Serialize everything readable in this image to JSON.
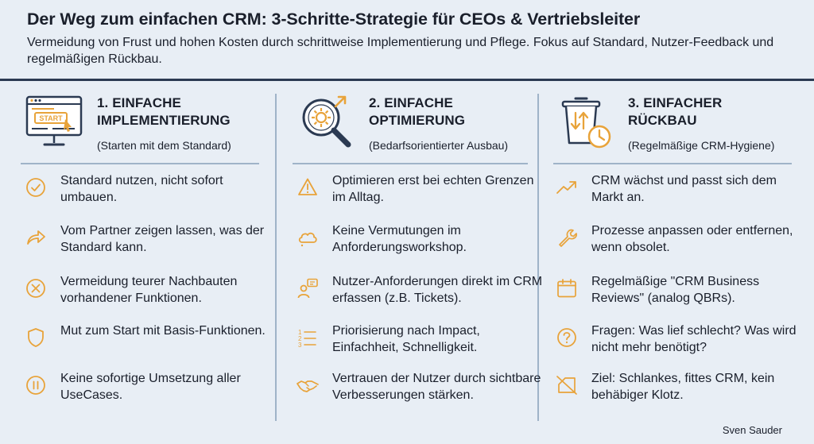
{
  "header": {
    "title": "Der Weg zum einfachen CRM: 3-Schritte-Strategie für CEOs & Vertriebsleiter",
    "subtitle": "Vermeidung von Frust und hohen Kosten durch schrittweise Implementierung und Pflege. Fokus auf Standard, Nutzer-Feedback und regelmäßigen Rückbau."
  },
  "colors": {
    "accent": "#e8a33a",
    "dark": "#2b3a52",
    "background": "#e8eef5"
  },
  "columns": [
    {
      "title_line1": "1. EINFACHE",
      "title_line2": "IMPLEMENTIERUNG",
      "subtitle": "(Starten mit dem Standard)",
      "icon": "monitor-start-icon",
      "start_label": "START",
      "items": [
        {
          "icon": "check-circle-icon",
          "text": "Standard nutzen, nicht sofort umbauen."
        },
        {
          "icon": "share-arrow-icon",
          "text": "Vom Partner zeigen lassen, was der Standard kann."
        },
        {
          "icon": "x-circle-icon",
          "text": "Vermeidung teurer Nachbauten vorhandener Funktionen."
        },
        {
          "icon": "shield-icon",
          "text": "Mut zum Start mit Basis-Funktionen."
        },
        {
          "icon": "pause-circle-icon",
          "text": "Keine sofortige Umsetzung aller UseCases."
        }
      ]
    },
    {
      "title_line1": "2. EINFACHE",
      "title_line2": "OPTIMIERUNG",
      "subtitle": "(Bedarfsorientierter Ausbau)",
      "icon": "magnifier-gear-icon",
      "items": [
        {
          "icon": "warning-triangle-icon",
          "text": "Optimieren erst bei echten Grenzen im Alltag."
        },
        {
          "icon": "cloud-icon",
          "text": "Keine Vermutungen im Anforderungsworkshop."
        },
        {
          "icon": "user-feedback-icon",
          "text": "Nutzer-Anforderungen direkt im CRM erfassen (z.B. Tickets)."
        },
        {
          "icon": "numbered-list-icon",
          "text": "Priorisierung nach Impact, Einfachheit, Schnelligkeit."
        },
        {
          "icon": "handshake-icon",
          "text": "Vertrauen der Nutzer durch sichtbare Verbesserungen stärken."
        }
      ]
    },
    {
      "title_line1": "3. EINFACHER",
      "title_line2": "RÜCKBAU",
      "subtitle": "(Regelmäßige CRM-Hygiene)",
      "icon": "trash-clock-icon",
      "items": [
        {
          "icon": "trend-up-icon",
          "text": "CRM wächst und passt sich dem Markt an."
        },
        {
          "icon": "wrench-icon",
          "text": "Prozesse anpassen oder entfernen, wenn obsolet."
        },
        {
          "icon": "calendar-icon",
          "text": "Regelmäßige \"CRM Business Reviews\" (analog QBRs)."
        },
        {
          "icon": "question-circle-icon",
          "text": "Fragen: Was lief schlecht? Was wird nicht mehr benötigt?"
        },
        {
          "icon": "slim-tag-icon",
          "text": "Ziel: Schlankes, fittes CRM, kein behäbiger Klotz."
        }
      ]
    }
  ],
  "author": "Sven Sauder"
}
